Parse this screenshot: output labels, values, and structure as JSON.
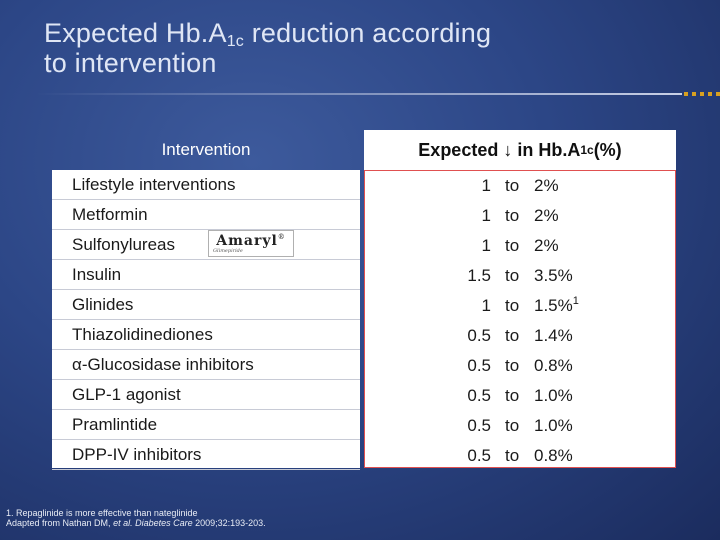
{
  "title": {
    "line1_pre": "Expected Hb.A",
    "line1_sub": "1c",
    "line1_post": " reduction according",
    "line2": "to intervention"
  },
  "colors": {
    "background": "#2c4686",
    "accent_dots": "#d8a020",
    "red_frame": "#e05050"
  },
  "table": {
    "header_intervention": "Intervention",
    "header_expected_pre": "Expected ↓ in Hb.A",
    "header_expected_sub": "1c",
    "header_expected_post": " (%)",
    "rows": [
      {
        "intervention": "Lifestyle interventions",
        "from": "1",
        "to": "to",
        "upto": "2%",
        "sup": ""
      },
      {
        "intervention": "Metformin",
        "from": "1",
        "to": "to",
        "upto": "2%",
        "sup": ""
      },
      {
        "intervention": "Sulfonylureas",
        "from": "1",
        "to": "to",
        "upto": "2%",
        "sup": ""
      },
      {
        "intervention": "Insulin",
        "from": "1.5",
        "to": "to",
        "upto": "3.5%",
        "sup": ""
      },
      {
        "intervention": "Glinides",
        "from": "1",
        "to": "to",
        "upto": "1.5%",
        "sup": "1"
      },
      {
        "intervention": "Thiazolidinediones",
        "from": "0.5",
        "to": "to",
        "upto": "1.4%",
        "sup": ""
      },
      {
        "intervention": "α-Glucosidase inhibitors",
        "from": "0.5",
        "to": "to",
        "upto": "0.8%",
        "sup": ""
      },
      {
        "intervention": "GLP-1 agonist",
        "from": "0.5",
        "to": "to",
        "upto": "1.0%",
        "sup": ""
      },
      {
        "intervention": "Pramlintide",
        "from": "0.5",
        "to": "to",
        "upto": "1.0%",
        "sup": ""
      },
      {
        "intervention": "DPP-IV inhibitors",
        "from": "0.5",
        "to": "to",
        "upto": "0.8%",
        "sup": ""
      }
    ]
  },
  "logo": {
    "word": "Amaryl",
    "mark": "®",
    "subtext": "Glimepiride"
  },
  "footnote": {
    "line1": "1. Repaglinide is more effective than nateglinide",
    "line2_pre": "Adapted from Nathan DM, ",
    "line2_em1": "et al. Diabetes Care",
    "line2_post": " 2009;32:193-203."
  }
}
